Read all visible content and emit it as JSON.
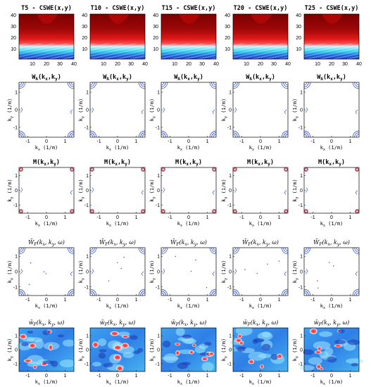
{
  "chart_data": {
    "type": "heatmap",
    "description_rows": [
      {
        "row": "cswe",
        "titles": [
          "T5 - CSWE(x,y)",
          "T10 - CSWE(x,y)",
          "T15 - CSWE(x,y)",
          "T20 - CSWE(x,y)",
          "T25 - CSWE(x,y)"
        ],
        "x_ticks": [
          "10",
          "20",
          "30",
          "40"
        ],
        "y_ticks": [
          "40",
          "30",
          "20",
          "10"
        ],
        "xlim": [
          0,
          40
        ],
        "ylim": [
          0,
          40
        ],
        "xlabel": "",
        "ylabel": "",
        "colormap": "jet"
      },
      {
        "row": "wa",
        "titles": [
          "W_A(k_x,k_y)",
          "W_A(k_x,k_y)",
          "W_A(k_x,k_y)",
          "W_A(k_x,k_y)",
          "W_A(k_x,k_y)"
        ],
        "x_ticks": [
          "-1",
          "0",
          "1"
        ],
        "y_ticks": [
          "1",
          "0",
          "-1"
        ],
        "xlabel": "k_x (1/m)",
        "ylabel": "k_y (1/m)",
        "plot_kind": "contour"
      },
      {
        "row": "m",
        "titles": [
          "M(k_x,k_y)",
          "M(k_x,k_y)",
          "M(k_x,k_y)",
          "M(k_x,k_y)",
          "M(k_x,k_y)"
        ],
        "x_ticks": [
          "-1",
          "0",
          "1"
        ],
        "y_ticks": [
          "1",
          "0",
          "-1"
        ],
        "xlabel": "k_x (1/m)",
        "ylabel": "k_y (1/m)",
        "plot_kind": "contour"
      },
      {
        "row": "wf_bar_upper",
        "titles": [
          "W̄_F(k_x,k_y,ω)",
          "W̄_F(k_x,k_y,ω)",
          "W̄_F(k_x,k_y,ω)",
          "W̄_F(k_x,k_y,ω)",
          "W̄_F(k_x,k_y,ω)"
        ],
        "x_ticks": [
          "-1",
          "0",
          "1"
        ],
        "y_ticks": [
          "1",
          "0",
          "-1"
        ],
        "xlabel": "k_x (1/m)",
        "ylabel": "k_y (1/m)",
        "plot_kind": "contour"
      },
      {
        "row": "wf_bar_lower",
        "titles": [
          "w̄_F(k_x,k_y,ω)",
          "w̄_F(k_x,k_y,ω)",
          "w̄_F(k_x,k_y,ω)",
          "w̄_F(k_x,k_y,ω)",
          "w̄_F(k_x,k_y,ω)"
        ],
        "x_ticks": [
          "-1",
          "0",
          "1"
        ],
        "y_ticks": [
          "1",
          "0",
          "-1"
        ],
        "xlabel": "k_x (1/m)",
        "ylabel": "k_y (1/m)",
        "colormap": "jet"
      }
    ]
  },
  "rows": {
    "cswe": {
      "titles": [
        "T5 - CSWE(x,y)",
        "T10 - CSWE(x,y)",
        "T15 - CSWE(x,y)",
        "T20 - CSWE(x,y)",
        "T25 - CSWE(x,y)"
      ],
      "x_ticks": [
        "10",
        "20",
        "30",
        "40"
      ],
      "y_ticks": [
        "40",
        "30",
        "20",
        "10"
      ]
    },
    "wa": {
      "title_main": "W",
      "title_sub": "A",
      "title_args": "(k",
      "arg_x": "x",
      "arg_sep": ",k",
      "arg_y": "y",
      "arg_close": ")"
    },
    "m": {
      "title_main": "M",
      "title_sub": "",
      "title_args": "(k",
      "arg_x": "x",
      "arg_sep": ",k",
      "arg_y": "y",
      "arg_close": ")"
    },
    "wf_upper": {
      "title_text": "W̄",
      "title_sub": "F",
      "title_args": "(k",
      "arg_x": "x",
      "arg_sep": ", k",
      "arg_y": "y",
      "arg_close": ", ω)"
    },
    "wf_lower": {
      "title_text": "w̄",
      "title_sub": "F",
      "title_args": "(k",
      "arg_x": "x",
      "arg_sep": ", k",
      "arg_y": "y",
      "arg_close": ", ω)"
    },
    "spectral_ticks": {
      "x": [
        "-1",
        "0",
        "1"
      ],
      "y": [
        "1",
        "0",
        "-1"
      ]
    },
    "xlabel": {
      "k": "k",
      "sub": "x",
      "unit": " (1/m)"
    },
    "ylabel": {
      "k": "k",
      "sub": "y",
      "unit": " (1/m)"
    }
  },
  "colors": {
    "contour_blue": "#1a3fd1",
    "contour_red": "#d42020",
    "jet_dark_red": "#8b0000",
    "jet_red": "#e81f1f",
    "jet_cyan": "#2ee0f0",
    "jet_blue": "#1e58e0",
    "jet_light": "#9fe7ff"
  }
}
